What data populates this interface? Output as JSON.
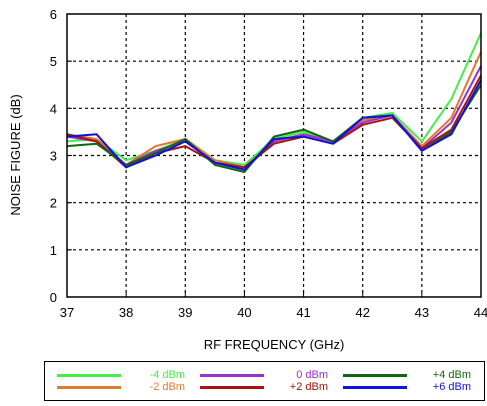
{
  "chart_data": {
    "type": "line",
    "title": "",
    "xlabel": "RF FREQUENCY (GHz)",
    "ylabel": "NOISE FIGURE (dB)",
    "xlim": [
      37,
      44
    ],
    "ylim": [
      0,
      6
    ],
    "x_ticks": [
      "37",
      "38",
      "39",
      "40",
      "41",
      "42",
      "43",
      "44"
    ],
    "y_ticks": [
      "0",
      "1",
      "2",
      "3",
      "4",
      "5",
      "6"
    ],
    "grid": true,
    "legend_position": "bottom",
    "x": [
      37,
      37.5,
      38,
      38.5,
      39,
      39.5,
      40,
      40.5,
      41,
      41.5,
      42,
      42.5,
      43,
      43.5,
      44
    ],
    "series": [
      {
        "name": "-4 dBm",
        "color": "#44ee44",
        "values": [
          3.3,
          3.35,
          2.9,
          3.1,
          3.35,
          2.9,
          2.8,
          3.35,
          3.5,
          3.3,
          3.8,
          3.9,
          3.3,
          4.2,
          5.6
        ]
      },
      {
        "name": "-2 dBm",
        "color": "#e07a30",
        "values": [
          3.45,
          3.35,
          2.8,
          3.2,
          3.35,
          2.9,
          2.75,
          3.3,
          3.45,
          3.3,
          3.75,
          3.85,
          3.2,
          3.8,
          5.2
        ]
      },
      {
        "name": "0 dBm",
        "color": "#9933cc",
        "values": [
          3.4,
          3.3,
          2.8,
          3.1,
          3.3,
          2.85,
          2.7,
          3.3,
          3.45,
          3.3,
          3.7,
          3.85,
          3.15,
          3.7,
          4.9
        ]
      },
      {
        "name": "+2 dBm",
        "color": "#aa1111",
        "values": [
          3.45,
          3.3,
          2.75,
          3.05,
          3.2,
          2.85,
          2.75,
          3.25,
          3.4,
          3.25,
          3.65,
          3.8,
          3.15,
          3.55,
          4.7
        ]
      },
      {
        "name": "+4 dBm",
        "color": "#116611",
        "values": [
          3.2,
          3.25,
          2.8,
          3.05,
          3.35,
          2.8,
          2.65,
          3.4,
          3.55,
          3.3,
          3.8,
          3.85,
          3.1,
          3.5,
          4.5
        ]
      },
      {
        "name": "+6 dBm",
        "color": "#1111dd",
        "values": [
          3.4,
          3.45,
          2.75,
          3.0,
          3.3,
          2.85,
          2.7,
          3.35,
          3.4,
          3.25,
          3.8,
          3.85,
          3.1,
          3.45,
          4.6
        ]
      }
    ]
  }
}
